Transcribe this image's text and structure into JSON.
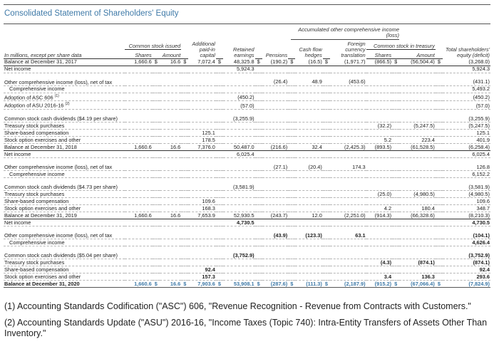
{
  "title": "Consolidated Statement of Shareholders' Equity",
  "header": {
    "units_label": "In millions, except per share data",
    "group_common_stock_issued": "Common stock issued",
    "group_aoci": "Accumulated other comprehensive income (loss)",
    "group_treasury": "Common stock in treasury",
    "columns": [
      "Shares",
      "Amount",
      "Additional paid-in capital",
      "Retained earnings",
      "Pensions",
      "Cash flow hedges",
      "Foreign currency translation",
      "Shares",
      "Amount",
      "Total shareholders' equity (deficit)"
    ]
  },
  "rows": [
    {
      "label": "Balance at December 31, 2017",
      "type": "balance",
      "dollars": true,
      "values": [
        "1,660.6",
        "16.6",
        "7,072.4",
        "48,325.8",
        "(190.2)",
        "(16.5)",
        "(1,971.7)",
        "(866.5)",
        "(56,504.4)",
        "(3,268.0)"
      ]
    },
    {
      "label": "Net income",
      "values": [
        "",
        "",
        "",
        "5,924.3",
        "",
        "",
        "",
        "",
        "",
        "5,924.3"
      ]
    },
    {
      "label": "Other comprehensive income (loss), net of tax",
      "values": [
        "",
        "",
        "",
        "",
        "(26.4)",
        "48.9",
        "(453.6)",
        "",
        "",
        "(431.1)"
      ]
    },
    {
      "label": "Comprehensive income",
      "indent": true,
      "values": [
        "",
        "",
        "",
        "",
        "",
        "",
        "",
        "",
        "",
        "5,493.2"
      ]
    },
    {
      "label": "Adoption of ASC 606",
      "footnote": "(1)",
      "values": [
        "",
        "",
        "",
        "(450.2)",
        "",
        "",
        "",
        "",
        "",
        "(450.2)"
      ]
    },
    {
      "label": "Adoption of ASU 2016-16",
      "footnote": "(2)",
      "values": [
        "",
        "",
        "",
        "(57.0)",
        "",
        "",
        "",
        "",
        "",
        "(57.0)"
      ]
    },
    {
      "label": "Common stock cash dividends ($4.19 per share)",
      "values": [
        "",
        "",
        "",
        "(3,255.9)",
        "",
        "",
        "",
        "",
        "",
        "(3,255.9)"
      ]
    },
    {
      "label": "Treasury stock purchases",
      "values": [
        "",
        "",
        "",
        "",
        "",
        "",
        "",
        "(32.2)",
        "(5,247.5)",
        "(5,247.5)"
      ]
    },
    {
      "label": "Share-based compensation",
      "values": [
        "",
        "",
        "125.1",
        "",
        "",
        "",
        "",
        "",
        "",
        "125.1"
      ]
    },
    {
      "label": "Stock option exercises and other",
      "values": [
        "",
        "",
        "178.5",
        "",
        "",
        "",
        "",
        "5.2",
        "223.4",
        "401.9"
      ]
    },
    {
      "label": "Balance at December 31, 2018",
      "type": "balance",
      "values": [
        "1,660.6",
        "16.6",
        "7,376.0",
        "50,487.0",
        "(216.6)",
        "32.4",
        "(2,425.3)",
        "(893.5)",
        "(61,528.5)",
        "(6,258.4)"
      ]
    },
    {
      "label": "Net income",
      "values": [
        "",
        "",
        "",
        "6,025.4",
        "",
        "",
        "",
        "",
        "",
        "6,025.4"
      ]
    },
    {
      "label": "Other comprehensive income (loss), net of tax",
      "values": [
        "",
        "",
        "",
        "",
        "(27.1)",
        "(20.4)",
        "174.3",
        "",
        "",
        "126.8"
      ]
    },
    {
      "label": "Comprehensive income",
      "indent": true,
      "values": [
        "",
        "",
        "",
        "",
        "",
        "",
        "",
        "",
        "",
        "6,152.2"
      ]
    },
    {
      "label": "Common stock cash dividends ($4.73 per share)",
      "values": [
        "",
        "",
        "",
        "(3,581.9)",
        "",
        "",
        "",
        "",
        "",
        "(3,581.9)"
      ]
    },
    {
      "label": "Treasury stock purchases",
      "values": [
        "",
        "",
        "",
        "",
        "",
        "",
        "",
        "(25.0)",
        "(4,980.5)",
        "(4,980.5)"
      ]
    },
    {
      "label": "Share-based compensation",
      "values": [
        "",
        "",
        "109.6",
        "",
        "",
        "",
        "",
        "",
        "",
        "109.6"
      ]
    },
    {
      "label": "Stock option exercises and other",
      "values": [
        "",
        "",
        "168.3",
        "",
        "",
        "",
        "",
        "4.2",
        "180.4",
        "348.7"
      ]
    },
    {
      "label": "Balance at December 31, 2019",
      "type": "balance",
      "values": [
        "1,660.6",
        "16.6",
        "7,653.9",
        "52,930.5",
        "(243.7)",
        "12.0",
        "(2,251.0)",
        "(914.3)",
        "(66,328.6)",
        "(8,210.3)"
      ]
    },
    {
      "label": "Net income",
      "bold_values": true,
      "values": [
        "",
        "",
        "",
        "4,730.5",
        "",
        "",
        "",
        "",
        "",
        "4,730.5"
      ]
    },
    {
      "label": "Other comprehensive income (loss), net of tax",
      "bold_values": true,
      "values": [
        "",
        "",
        "",
        "",
        "(43.9)",
        "(123.3)",
        "63.1",
        "",
        "",
        "(104.1)"
      ]
    },
    {
      "label": "Comprehensive income",
      "indent": true,
      "bold_values": true,
      "values": [
        "",
        "",
        "",
        "",
        "",
        "",
        "",
        "",
        "",
        "4,626.4"
      ]
    },
    {
      "label": "Common stock cash dividends ($5.04 per share)",
      "bold_values": true,
      "values": [
        "",
        "",
        "",
        "(3,752.9)",
        "",
        "",
        "",
        "",
        "",
        "(3,752.9)"
      ]
    },
    {
      "label": "Treasury stock purchases",
      "bold_values": true,
      "values": [
        "",
        "",
        "",
        "",
        "",
        "",
        "",
        "(4.3)",
        "(874.1)",
        "(874.1)"
      ]
    },
    {
      "label": "Share-based compensation",
      "bold_values": true,
      "values": [
        "",
        "",
        "92.4",
        "",
        "",
        "",
        "",
        "",
        "",
        "92.4"
      ]
    },
    {
      "label": "Stock option exercises and other",
      "bold_values": true,
      "values": [
        "",
        "",
        "157.3",
        "",
        "",
        "",
        "",
        "3.4",
        "136.3",
        "293.6"
      ]
    },
    {
      "label": "Balance at December 31, 2020",
      "type": "final",
      "dollars": true,
      "values": [
        "1,660.6",
        "16.6",
        "7,903.6",
        "53,908.1",
        "(287.6)",
        "(111.3)",
        "(2,187.9)",
        "(915.2)",
        "(67,066.4)",
        "(7,824.9)"
      ]
    }
  ],
  "footnotes": [
    "(1) Accounting Standards Codification (\"ASC\") 606, \"Revenue Recognition - Revenue from Contracts with Customers.\"",
    "(2) Accounting Standards Update (\"ASU\") 2016-16, \"Income Taxes (Topic 740): Intra-Entity Transfers of Assets Other Than Inventory.\""
  ],
  "colors": {
    "title": "#3f7aa8",
    "final_balance": "#3f7aa8"
  }
}
